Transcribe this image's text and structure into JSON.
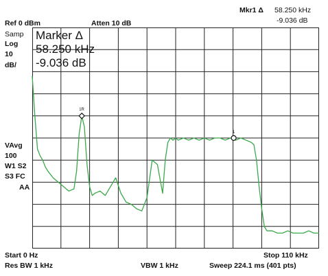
{
  "header": {
    "ref_level": "Ref 0 dBm",
    "atten": "Atten 10 dB",
    "marker_readout_label": "Mkr1 Δ",
    "marker_readout_freq": "58.250 kHz",
    "marker_readout_level": "-9.036 dB"
  },
  "left_panel": {
    "samp": "Samp",
    "log": "Log",
    "scale_value": "10",
    "scale_unit": "dB/",
    "vavg": "VAvg",
    "vavg_count": "100",
    "w1s2": "W1  S2",
    "s3fc": "S3  FC",
    "aa": "AA"
  },
  "marker_box": {
    "title": "Marker Δ",
    "freq": "58.250 kHz",
    "level": "-9.036 dB"
  },
  "markers": {
    "reference_label": "1R",
    "delta_label": "1"
  },
  "footer": {
    "start": "Start 0 Hz",
    "stop": "Stop 110 kHz",
    "res_bw": "Res BW 1 kHz",
    "vbw": "VBW 1 kHz",
    "sweep": "Sweep 224.1 ms (401 pts)"
  },
  "colors": {
    "trace": "#3aa84a",
    "grid": "#222222",
    "background": "#ffffff"
  },
  "chart_data": {
    "type": "line",
    "x_unit": "kHz",
    "y_unit": "dB",
    "xlim": [
      0,
      110
    ],
    "ylim": [
      -100,
      0
    ],
    "grid": true,
    "x": [
      0,
      1,
      2,
      3,
      4,
      5,
      6,
      8,
      10,
      12,
      14,
      16,
      17,
      18,
      19,
      20,
      21,
      22,
      23,
      24,
      26,
      28,
      30,
      32,
      34,
      36,
      38,
      40,
      42,
      44,
      46,
      48,
      50,
      51,
      52,
      53,
      54,
      55,
      56,
      58,
      60,
      62,
      64,
      66,
      68,
      70,
      72,
      74,
      76,
      78,
      80,
      82,
      84,
      85,
      86,
      87,
      88,
      89,
      90,
      92,
      94,
      96,
      98,
      100,
      102,
      104,
      106,
      108,
      110
    ],
    "values": [
      -22,
      -40,
      -55,
      -58,
      -60,
      -63,
      -65,
      -68,
      -70,
      -72,
      -74,
      -73,
      -65,
      -48,
      -40,
      -45,
      -62,
      -72,
      -76,
      -75,
      -74,
      -76,
      -72,
      -68,
      -75,
      -79,
      -80,
      -82,
      -83,
      -77,
      -60,
      -62,
      -75,
      -60,
      -52,
      -50,
      -51,
      -50,
      -51,
      -50,
      -51,
      -50,
      -51,
      -50,
      -51,
      -50,
      -50,
      -51,
      -50,
      -51,
      -50,
      -51,
      -52,
      -53,
      -60,
      -72,
      -82,
      -90,
      -92,
      -92,
      -93,
      -93,
      -92,
      -93,
      -93,
      -93,
      -92,
      -93,
      -93
    ]
  }
}
